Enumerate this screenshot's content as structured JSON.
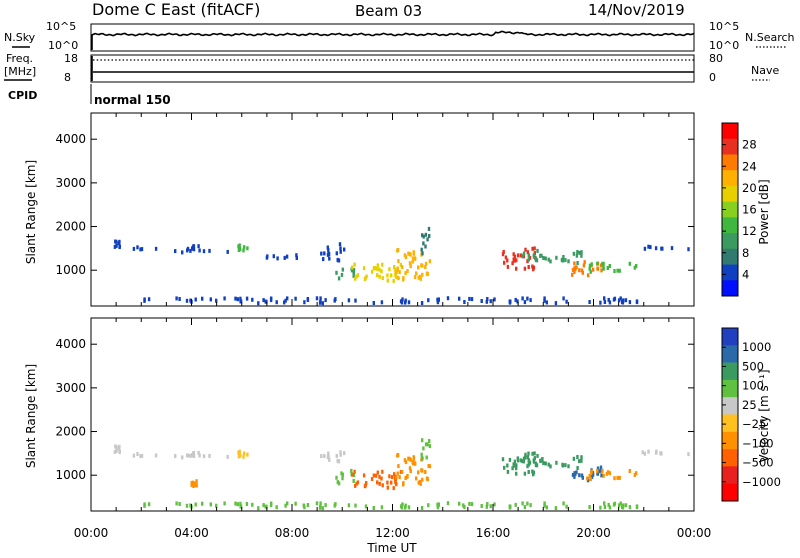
{
  "header": {
    "station": "Dome C East (fitACF)",
    "beam": "Beam 03",
    "date": "14/Nov/2019"
  },
  "top_panels": {
    "nsky_label": "N.Sky",
    "nsky_top": "10^5",
    "nsky_bottom": "10^0",
    "nsearch_label": "N.Search",
    "nsearch_top": "10^5",
    "nsearch_bottom": "10^0",
    "freq_label_line1": "Freq.",
    "freq_label_line2": "[MHz]",
    "freq_top": "18",
    "freq_bottom": "8",
    "nave_label": "Nave",
    "nave_top": "80",
    "nave_bottom": "0",
    "cpid_label": "CPID",
    "cpid_value": "normal 150"
  },
  "chart_data": [
    {
      "type": "heatmap",
      "ylabel": "Slant Range [km]",
      "ylim": [
        180,
        4600
      ],
      "yticks": [
        "4000",
        "3000",
        "2000",
        "1000"
      ],
      "colorbar": {
        "label": "Power [dB]",
        "ticks": [
          "28",
          "24",
          "20",
          "16",
          "12",
          "8",
          "4"
        ],
        "colors": [
          "#ff0000",
          "#e83020",
          "#ff7a00",
          "#ffb000",
          "#e8d000",
          "#88d020",
          "#40b840",
          "#3a9a60",
          "#307a70",
          "#1040c0",
          "#0010ff"
        ]
      },
      "blobs": [
        {
          "t": 1.0,
          "r": 1650,
          "dt": 0.1,
          "dr": 80,
          "c": "#1040c0"
        },
        {
          "t": 2.5,
          "r": 1560,
          "dt": 1.8,
          "dr": 40,
          "c": "#1040c0"
        },
        {
          "t": 4.2,
          "r": 1480,
          "dt": 1.2,
          "dr": 40,
          "c": "#1040c0"
        },
        {
          "t": 6.0,
          "r": 1580,
          "dt": 0.2,
          "dr": 100,
          "c": "#40b840"
        },
        {
          "t": 7.2,
          "r": 1350,
          "dt": 1.2,
          "dr": 40,
          "c": "#1040c0"
        },
        {
          "t": 9.6,
          "r": 1450,
          "dt": 0.5,
          "dr": 200,
          "c": "#1040c0"
        },
        {
          "t": 10.1,
          "r": 1000,
          "dt": 0.4,
          "dr": 150,
          "c": "#3a9a60"
        },
        {
          "t": 11.3,
          "r": 1000,
          "dt": 1.0,
          "dr": 200,
          "c": "#e8d000"
        },
        {
          "t": 12.8,
          "r": 1180,
          "dt": 0.7,
          "dr": 350,
          "c": "#ffb000"
        },
        {
          "t": 13.3,
          "r": 1700,
          "dt": 0.2,
          "dr": 300,
          "c": "#307a70"
        },
        {
          "t": 17.0,
          "r": 1300,
          "dt": 0.7,
          "dr": 250,
          "c": "#e83020"
        },
        {
          "t": 18.3,
          "r": 1350,
          "dt": 1.2,
          "dr": 150,
          "c": "#3a9a60"
        },
        {
          "t": 19.7,
          "r": 1100,
          "dt": 0.6,
          "dr": 200,
          "c": "#ff7a00"
        },
        {
          "t": 20.7,
          "r": 1100,
          "dt": 1.0,
          "dr": 100,
          "c": "#40b840"
        },
        {
          "t": 22.8,
          "r": 1550,
          "dt": 1.0,
          "dr": 40,
          "c": "#1040c0"
        },
        {
          "t": 12.0,
          "r": 350,
          "dt": 10.0,
          "dr": 60,
          "c": "#1040c0"
        }
      ]
    },
    {
      "type": "heatmap",
      "ylabel": "Slant Range [km]",
      "ylim": [
        180,
        4600
      ],
      "yticks": [
        "4000",
        "3000",
        "2000",
        "1000"
      ],
      "xlabel": "Time UT",
      "xticks": [
        "00:00",
        "04:00",
        "08:00",
        "12:00",
        "16:00",
        "20:00",
        "00:00"
      ],
      "colorbar": {
        "label": "Velocity [m s⁻¹]",
        "ticks": [
          "1000",
          "500",
          "100",
          "25",
          "−25",
          "−100",
          "−500",
          "−1000"
        ],
        "colors": [
          "#2040c0",
          "#2a6aa8",
          "#3a9a60",
          "#60c040",
          "#c8c8c8",
          "#ffc020",
          "#ff9000",
          "#ff6000",
          "#e82020",
          "#ff0000"
        ]
      },
      "blobs": [
        {
          "t": 1.0,
          "r": 1650,
          "dt": 0.1,
          "dr": 80,
          "c": "#c8c8c8"
        },
        {
          "t": 2.5,
          "r": 1520,
          "dt": 1.8,
          "dr": 40,
          "c": "#c8c8c8"
        },
        {
          "t": 4.2,
          "r": 1480,
          "dt": 1.2,
          "dr": 40,
          "c": "#c8c8c8"
        },
        {
          "t": 6.0,
          "r": 1550,
          "dt": 0.2,
          "dr": 100,
          "c": "#ffc020"
        },
        {
          "t": 4.0,
          "r": 850,
          "dt": 0.2,
          "dr": 60,
          "c": "#ff9000"
        },
        {
          "t": 9.6,
          "r": 1500,
          "dt": 0.5,
          "dr": 150,
          "c": "#c8c8c8"
        },
        {
          "t": 10.1,
          "r": 1000,
          "dt": 0.4,
          "dr": 150,
          "c": "#60c040"
        },
        {
          "t": 11.3,
          "r": 950,
          "dt": 1.0,
          "dr": 200,
          "c": "#ff6000"
        },
        {
          "t": 12.8,
          "r": 1180,
          "dt": 0.7,
          "dr": 350,
          "c": "#ff9000"
        },
        {
          "t": 13.3,
          "r": 1700,
          "dt": 0.2,
          "dr": 300,
          "c": "#60c040"
        },
        {
          "t": 17.0,
          "r": 1300,
          "dt": 0.7,
          "dr": 250,
          "c": "#3a9a60"
        },
        {
          "t": 18.3,
          "r": 1350,
          "dt": 1.2,
          "dr": 150,
          "c": "#3a9a60"
        },
        {
          "t": 19.7,
          "r": 1100,
          "dt": 0.6,
          "dr": 200,
          "c": "#2a6aa8"
        },
        {
          "t": 20.7,
          "r": 1050,
          "dt": 1.0,
          "dr": 100,
          "c": "#ff9000"
        },
        {
          "t": 22.8,
          "r": 1550,
          "dt": 1.0,
          "dr": 40,
          "c": "#c8c8c8"
        },
        {
          "t": 12.0,
          "r": 350,
          "dt": 10.0,
          "dr": 60,
          "c": "#60c040"
        }
      ]
    }
  ]
}
